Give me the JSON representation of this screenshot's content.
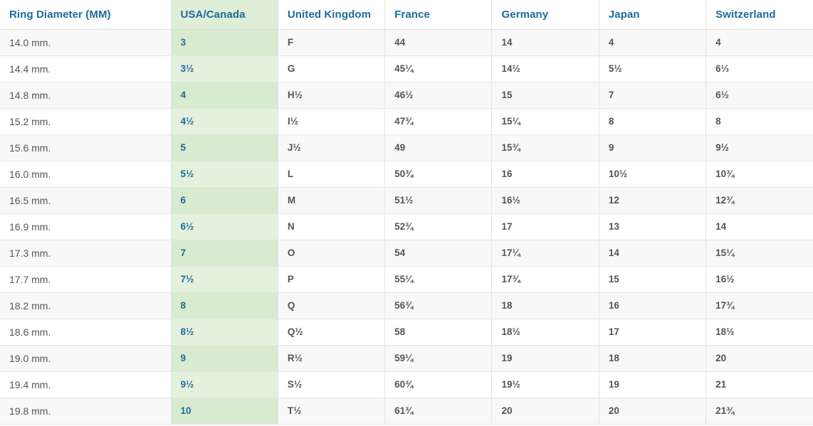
{
  "table": {
    "columns": [
      {
        "label": "Ring Diameter (MM)",
        "key": "ring-diameter-mm",
        "highlighted": false
      },
      {
        "label": "USA/Canada",
        "key": "usa-canada",
        "highlighted": true
      },
      {
        "label": "United Kingdom",
        "key": "united-kingdom",
        "highlighted": false
      },
      {
        "label": "France",
        "key": "france",
        "highlighted": false
      },
      {
        "label": "Germany",
        "key": "germany",
        "highlighted": false
      },
      {
        "label": "Japan",
        "key": "japan",
        "highlighted": false
      },
      {
        "label": "Switzerland",
        "key": "switzerland",
        "highlighted": false
      }
    ],
    "rows": [
      [
        "14.0 mm.",
        "3",
        "F",
        "44",
        "14",
        "4",
        "4"
      ],
      [
        "14.4 mm.",
        "3½",
        "G",
        "45¼",
        "14½",
        "5½",
        "6⅓"
      ],
      [
        "14.8 mm.",
        "4",
        "H½",
        "46½",
        "15",
        "7",
        "6½"
      ],
      [
        "15.2 mm.",
        "4½",
        "I½",
        "47¾",
        "15¼",
        "8",
        "8"
      ],
      [
        "15.6 mm.",
        "5",
        "J½",
        "49",
        "15¾",
        "9",
        "9½"
      ],
      [
        "16.0 mm.",
        "5½",
        "L",
        "50¾",
        "16",
        "10½",
        "10¾"
      ],
      [
        "16.5 mm.",
        "6",
        "M",
        "51½",
        "16½",
        "12",
        "12¾"
      ],
      [
        "16.9 mm.",
        "6½",
        "N",
        "52¾",
        "17",
        "13",
        "14"
      ],
      [
        "17.3 mm.",
        "7",
        "O",
        "54",
        "17¼",
        "14",
        "15¼"
      ],
      [
        "17.7 mm.",
        "7½",
        "P",
        "55¼",
        "17¾",
        "15",
        "16½"
      ],
      [
        "18.2 mm.",
        "8",
        "Q",
        "56¾",
        "18",
        "16",
        "17¾"
      ],
      [
        "18.6 mm.",
        "8½",
        "Q½",
        "58",
        "18½",
        "17",
        "18½"
      ],
      [
        "19.0 mm.",
        "9",
        "R½",
        "59¼",
        "19",
        "18",
        "20"
      ],
      [
        "19.4 mm.",
        "9½",
        "S½",
        "60¾",
        "19½",
        "19",
        "21"
      ],
      [
        "19.8 mm.",
        "10",
        "T½",
        "61¾",
        "20",
        "20",
        "21¾"
      ]
    ]
  },
  "colors": {
    "header_text": "#1e6a9c",
    "cell_text": "#545454",
    "stripe_bg": "#f8f8f8",
    "highlight_bg": "#e3f1dd",
    "highlight_bg_striped": "#d8ebce",
    "highlight_header_bg": "#deeed7",
    "border": "#e4e4e4"
  }
}
